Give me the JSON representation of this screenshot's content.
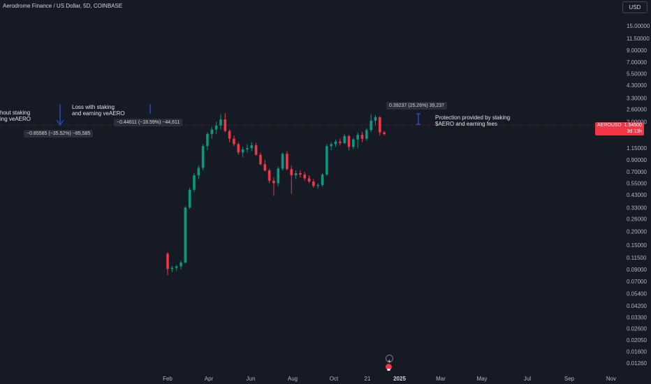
{
  "header": {
    "title": "Aerodrome Finance / US Dollar, 5D, COINBASE"
  },
  "currency_button": "USD",
  "price_tag": {
    "symbol": "AEROUSD",
    "price": "1.54500",
    "countdown": "3d 13h"
  },
  "annotations": {
    "left_note_line1": "hout staking",
    "left_note_line2": "ing veAERO",
    "mid_note_line1": "Loss with staking",
    "mid_note_line2": "and earning veAERO",
    "right_note_line1": "Protection provided by staking",
    "right_note_line2": "$AERO and earning fees",
    "measure_left": "−0.85585 (−35.52%) −85,585",
    "measure_mid": "−0.44611 (−18.59%) −44,611",
    "measure_right": "0.39237 (25.26%) 39,237"
  },
  "colors": {
    "up": "#089981",
    "down": "#f23645",
    "background": "#161a25",
    "annotation": "#2962ff"
  },
  "chart_data": {
    "type": "candlestick",
    "title": "Aerodrome Finance / US Dollar, 5D, COINBASE",
    "y_scale": "log",
    "y_ticks": [
      "15.00000",
      "11.50000",
      "9.00000",
      "7.00000",
      "5.50000",
      "4.30000",
      "3.30000",
      "2.60000",
      "2.00000",
      "1.54500",
      "1.15000",
      "0.90000",
      "0.70000",
      "0.55000",
      "0.43000",
      "0.33000",
      "0.26000",
      "0.20000",
      "0.15000",
      "0.11500",
      "0.09000",
      "0.07000",
      "0.05400",
      "0.04200",
      "0.03300",
      "0.02600",
      "0.02050",
      "0.01600",
      "0.01260"
    ],
    "x_ticks": [
      "Feb",
      "Apr",
      "Jun",
      "Aug",
      "Oct",
      "21",
      "2025",
      "Mar",
      "May",
      "Jul",
      "Sep",
      "Nov"
    ],
    "ohlc": [
      [
        0.125,
        0.129,
        0.08,
        0.091
      ],
      [
        0.091,
        0.097,
        0.085,
        0.093
      ],
      [
        0.093,
        0.099,
        0.088,
        0.096
      ],
      [
        0.096,
        0.108,
        0.09,
        0.104
      ],
      [
        0.104,
        0.34,
        0.102,
        0.33
      ],
      [
        0.33,
        0.5,
        0.32,
        0.48
      ],
      [
        0.48,
        0.68,
        0.46,
        0.65
      ],
      [
        0.65,
        0.8,
        0.6,
        0.76
      ],
      [
        0.76,
        1.25,
        0.72,
        1.2
      ],
      [
        1.2,
        1.6,
        1.1,
        1.55
      ],
      [
        1.55,
        1.8,
        1.4,
        1.7
      ],
      [
        1.7,
        2.0,
        1.55,
        1.85
      ],
      [
        1.85,
        2.35,
        1.7,
        2.1
      ],
      [
        2.1,
        2.4,
        1.6,
        1.65
      ],
      [
        1.65,
        1.7,
        1.3,
        1.4
      ],
      [
        1.4,
        1.5,
        1.2,
        1.25
      ],
      [
        1.25,
        1.3,
        1.0,
        1.05
      ],
      [
        1.05,
        1.18,
        0.95,
        1.12
      ],
      [
        1.12,
        1.25,
        1.05,
        1.15
      ],
      [
        1.15,
        1.3,
        1.08,
        1.22
      ],
      [
        1.22,
        1.28,
        0.98,
        1.0
      ],
      [
        1.0,
        1.05,
        0.8,
        0.82
      ],
      [
        0.82,
        0.9,
        0.7,
        0.72
      ],
      [
        0.72,
        0.75,
        0.55,
        0.58
      ],
      [
        0.58,
        0.62,
        0.42,
        0.55
      ],
      [
        0.55,
        0.78,
        0.52,
        0.75
      ],
      [
        0.75,
        1.05,
        0.72,
        1.02
      ],
      [
        1.02,
        1.08,
        0.72,
        0.74
      ],
      [
        0.74,
        0.8,
        0.44,
        0.65
      ],
      [
        0.65,
        0.72,
        0.6,
        0.68
      ],
      [
        0.68,
        0.72,
        0.62,
        0.66
      ],
      [
        0.66,
        0.7,
        0.58,
        0.61
      ],
      [
        0.61,
        0.65,
        0.55,
        0.57
      ],
      [
        0.57,
        0.6,
        0.5,
        0.52
      ],
      [
        0.52,
        0.55,
        0.49,
        0.53
      ],
      [
        0.53,
        0.68,
        0.51,
        0.66
      ],
      [
        0.66,
        1.25,
        0.64,
        1.2
      ],
      [
        1.2,
        1.3,
        1.1,
        1.25
      ],
      [
        1.25,
        1.38,
        1.18,
        1.32
      ],
      [
        1.32,
        1.4,
        1.22,
        1.28
      ],
      [
        1.28,
        1.55,
        1.25,
        1.48
      ],
      [
        1.48,
        1.52,
        1.1,
        1.18
      ],
      [
        1.18,
        1.42,
        1.12,
        1.38
      ],
      [
        1.38,
        1.6,
        1.15,
        1.52
      ],
      [
        1.52,
        1.62,
        1.3,
        1.4
      ],
      [
        1.4,
        1.75,
        1.35,
        1.68
      ],
      [
        1.68,
        2.35,
        1.6,
        2.05
      ],
      [
        2.05,
        2.3,
        1.85,
        2.2
      ],
      [
        2.2,
        2.25,
        1.5,
        1.6
      ],
      [
        1.6,
        1.65,
        1.5,
        1.545
      ]
    ]
  }
}
